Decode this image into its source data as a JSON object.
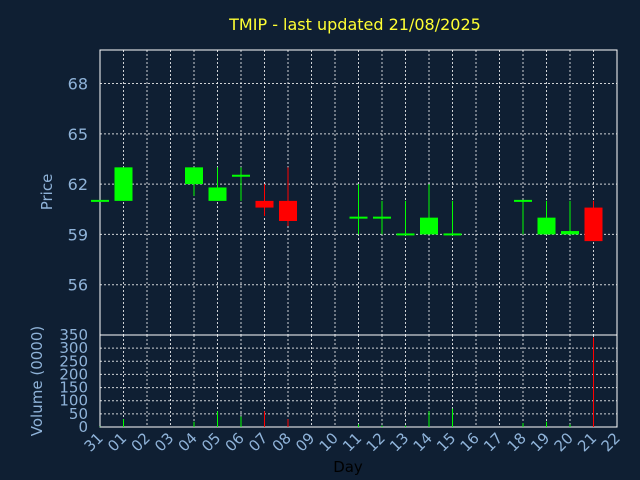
{
  "chart_data": [
    {
      "type": "candlestick",
      "title": "TMIP - last updated 21/08/2025",
      "ylabel": "Price",
      "ylim": [
        53.0,
        70.0
      ],
      "yticks": [
        56,
        59,
        62,
        65,
        68
      ],
      "grid": true,
      "colors": {
        "up": "#00ff00",
        "down": "#ff0000"
      },
      "x": [
        "31",
        "01",
        "04",
        "05",
        "06",
        "07",
        "08",
        "11",
        "12",
        "13",
        "14",
        "15",
        "18",
        "19",
        "20",
        "21"
      ],
      "open": [
        61.0,
        61.0,
        62.0,
        61.0,
        62.5,
        61.0,
        61.0,
        60.0,
        60.0,
        59.0,
        59.0,
        59.0,
        61.0,
        59.0,
        59.0,
        60.6
      ],
      "high": [
        61.0,
        63.0,
        63.0,
        63.0,
        63.0,
        62.0,
        63.0,
        62.0,
        61.0,
        61.0,
        62.0,
        61.0,
        61.0,
        61.0,
        61.0,
        61.0
      ],
      "low": [
        61.0,
        61.0,
        61.3,
        61.0,
        61.0,
        60.1,
        59.5,
        59.0,
        59.0,
        59.0,
        59.0,
        59.0,
        59.0,
        59.0,
        59.0,
        58.6
      ],
      "close": [
        61.0,
        63.0,
        63.0,
        61.8,
        62.5,
        60.6,
        59.8,
        60.0,
        60.0,
        59.0,
        60.0,
        59.0,
        61.0,
        60.0,
        59.2,
        58.6
      ]
    },
    {
      "type": "bar",
      "ylabel": "Volume (0000)",
      "xlabel": "Day",
      "ylim": [
        0,
        350
      ],
      "yticks": [
        0,
        50,
        100,
        150,
        200,
        250,
        300,
        350
      ],
      "categories": [
        "31",
        "01",
        "04",
        "05",
        "06",
        "07",
        "08",
        "11",
        "12",
        "13",
        "14",
        "15",
        "18",
        "19",
        "20",
        "21"
      ],
      "values": [
        2,
        30,
        20,
        60,
        40,
        60,
        30,
        10,
        5,
        5,
        60,
        70,
        15,
        20,
        10,
        340
      ],
      "x_tick_labels": [
        "31",
        "01",
        "02",
        "03",
        "04",
        "05",
        "06",
        "07",
        "08",
        "09",
        "10",
        "11",
        "12",
        "13",
        "14",
        "15",
        "16",
        "17",
        "18",
        "19",
        "20",
        "21",
        "22"
      ]
    }
  ]
}
